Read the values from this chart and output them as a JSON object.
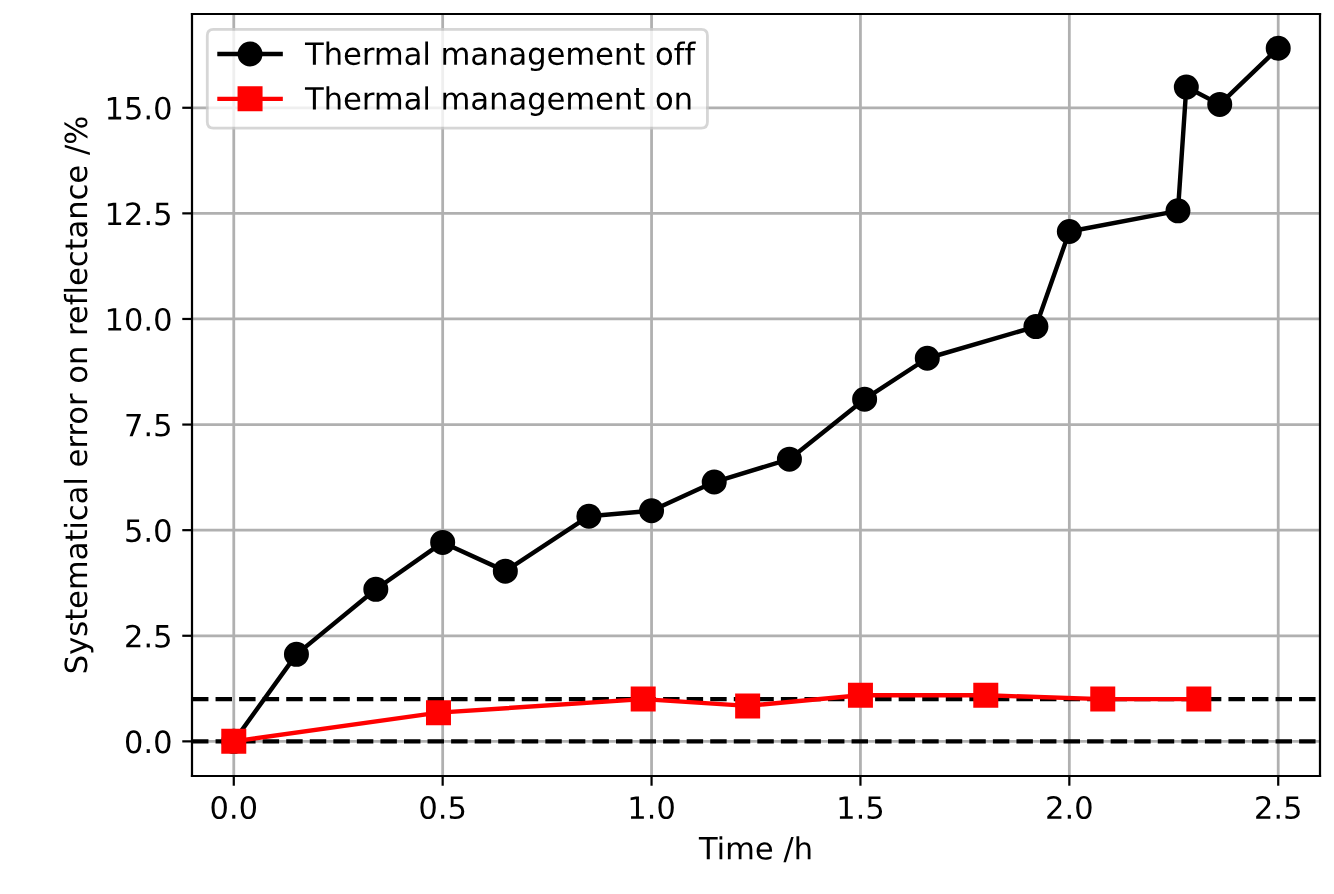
{
  "chart_data": {
    "type": "line",
    "xlabel": "Time /h",
    "ylabel": "Systematical error on reflectance /%",
    "xlim": [
      -0.1,
      2.6
    ],
    "ylim": [
      -0.82,
      17.22
    ],
    "xticks": [
      {
        "value": 0,
        "label": "0.0"
      },
      0.5,
      {
        "value": 1,
        "label": "1.0"
      },
      1.5,
      {
        "value": 2,
        "label": "2.0"
      },
      2.5
    ],
    "yticks": [
      {
        "value": 0,
        "label": "0.0"
      },
      2.5,
      {
        "value": 5,
        "label": "5.0"
      },
      7.5,
      {
        "value": 10,
        "label": "10.0"
      },
      12.5,
      {
        "value": 15,
        "label": "15.0"
      }
    ],
    "grid": true,
    "legend": "top left",
    "line_style": "solid",
    "series": [
      {
        "name": "Thermal management off",
        "color": "#000000",
        "marker": "circle",
        "x": [
          0,
          0.15,
          0.34,
          0.5,
          0.65,
          0.85,
          1.0,
          1.15,
          1.33,
          1.51,
          1.66,
          1.92,
          2.0,
          2.26,
          2.28,
          2.36,
          2.5
        ],
        "values": [
          0,
          2.06,
          3.6,
          4.71,
          4.03,
          5.33,
          5.46,
          6.14,
          6.68,
          8.1,
          9.07,
          9.82,
          12.07,
          12.56,
          15.49,
          15.08,
          16.41
        ]
      },
      {
        "name": "Thermal management on",
        "color": "#ff0000",
        "marker": "square",
        "x": [
          0,
          0.49,
          0.98,
          1.23,
          1.5,
          1.8,
          2.08,
          2.31
        ],
        "values": [
          0,
          0.68,
          1.0,
          0.84,
          1.09,
          1.09,
          1.0,
          1.0
        ]
      }
    ],
    "ref_lines": [
      {
        "axis": "y",
        "value": 0,
        "color": "#000000",
        "line_style": "dashed"
      },
      {
        "axis": "y",
        "value": 1,
        "color": "#000000",
        "line_style": "dashed"
      }
    ]
  }
}
